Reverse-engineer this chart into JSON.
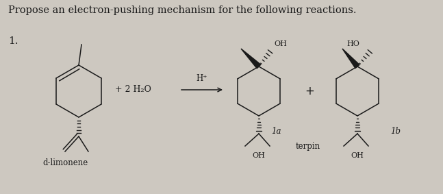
{
  "title": "Propose an electron-pushing mechanism for the following reactions.",
  "reaction_number": "1.",
  "reactant_label": "d-limonene",
  "reagent": "+ 2 H₂O",
  "catalyst": "H⁺",
  "product1_label": "1a",
  "product2_label": "1b",
  "product_group_label": "terpin",
  "plus_sign": "+",
  "background_color": "#cdc8c0",
  "text_color": "#1a1a1a",
  "line_color": "#1a1a1a",
  "title_fontsize": 10.5,
  "label_fontsize": 9,
  "small_fontsize": 8.5
}
